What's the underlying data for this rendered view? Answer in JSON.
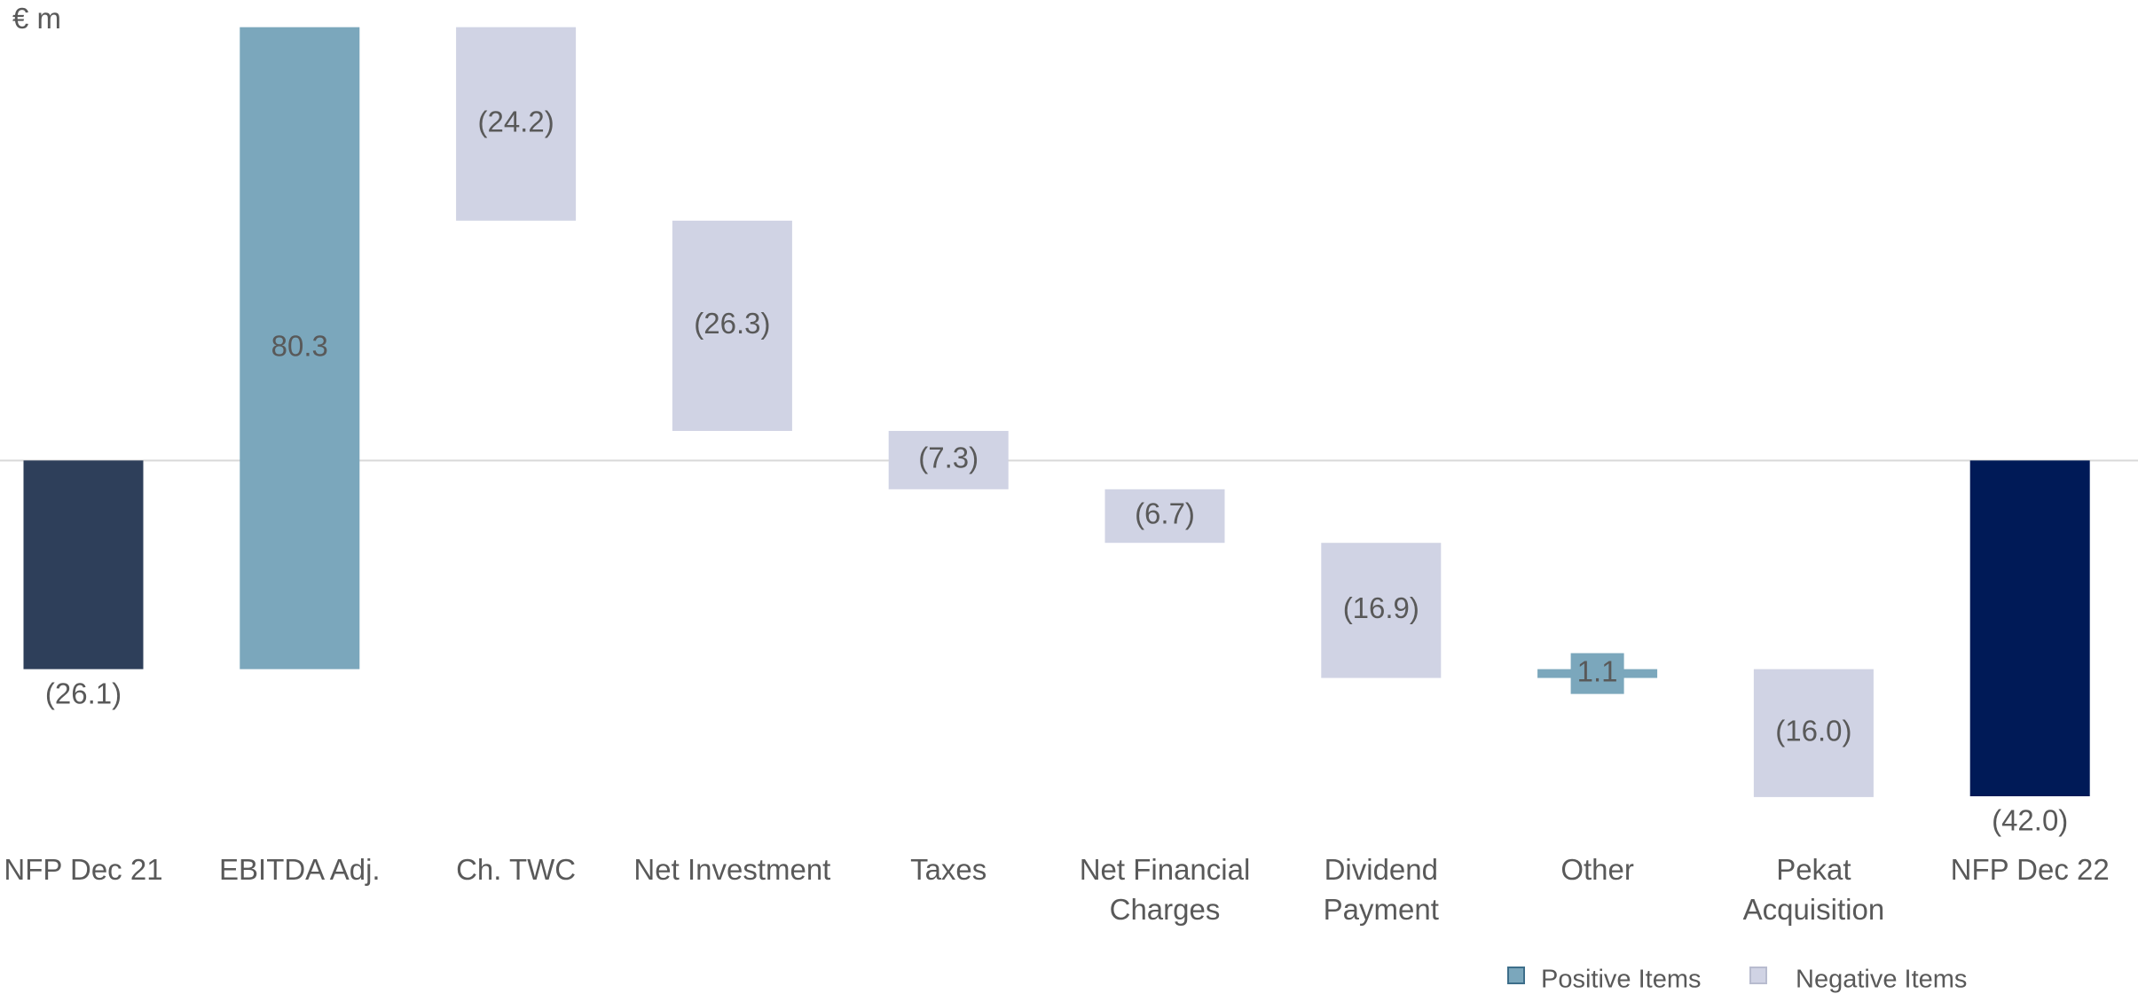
{
  "chart_data": {
    "type": "waterfall",
    "unit_label": "€ m",
    "categories": [
      "NFP Dec 21",
      "EBITDA Adj.",
      "Ch. TWC",
      "Net Investment",
      "Taxes",
      "Net Financial Charges",
      "Dividend Payment",
      "Other",
      "Pekat Acquisition",
      "NFP Dec 22"
    ],
    "values": [
      -26.1,
      80.3,
      -24.2,
      -26.3,
      -7.3,
      -6.7,
      -16.9,
      1.1,
      -16.0,
      -42.0
    ],
    "value_labels": [
      "(26.1)",
      "80.3",
      "(24.2)",
      "(26.3)",
      "(7.3)",
      "(6.7)",
      "(16.9)",
      "1.1",
      "(16.0)",
      "(42.0)"
    ],
    "measure": [
      "absolute",
      "relative",
      "relative",
      "relative",
      "relative",
      "relative",
      "relative",
      "relative",
      "relative",
      "absolute"
    ],
    "colors": [
      "#2e3f5a",
      "#7ba7bc",
      "#d0d3e4",
      "#d0d3e4",
      "#d0d3e4",
      "#d0d3e4",
      "#d0d3e4",
      "#7ba7bc",
      "#d0d3e4",
      "#001a57"
    ],
    "ylim": [
      -42,
      57.6
    ],
    "legend": {
      "position": "bottom-right",
      "items": [
        {
          "name": "Positive Items",
          "color": "#7ba7bc"
        },
        {
          "name": "Negative Items",
          "color": "#d0d3e4"
        }
      ]
    }
  }
}
